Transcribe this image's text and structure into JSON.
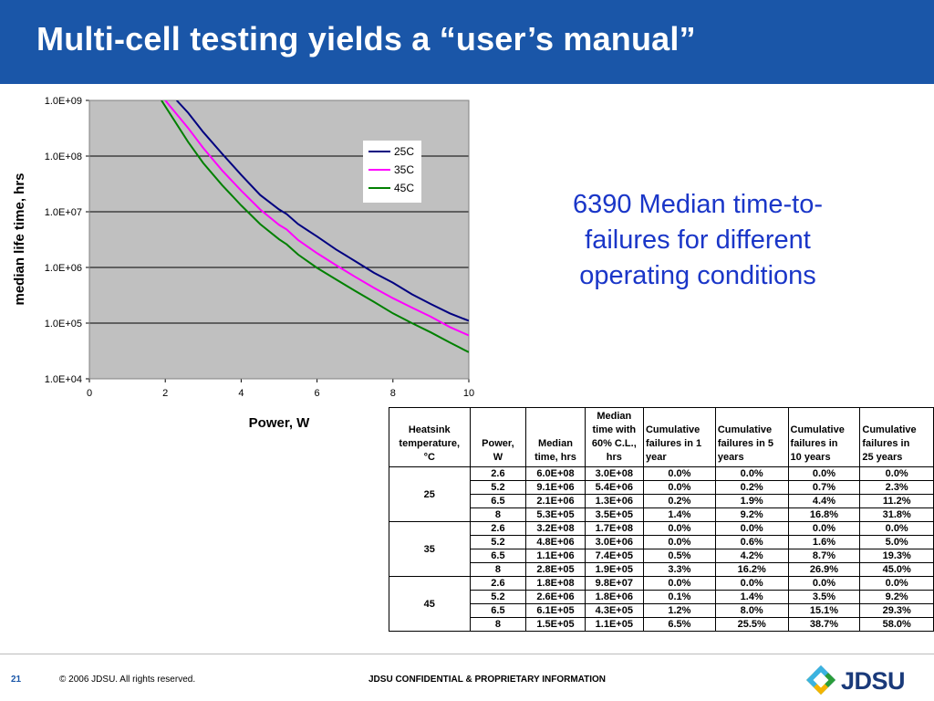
{
  "slide": {
    "title": "Multi-cell testing yields a “user’s manual”",
    "callout": "6390 Median time-to-failures for different operating conditions",
    "colors": {
      "header": "#1a56a8",
      "callout": "#1a36c8",
      "plot_bg": "#c0c0c0"
    }
  },
  "chart_data": {
    "type": "line",
    "title": "",
    "xlabel": "Power, W",
    "ylabel": "median life time, hrs",
    "xlim": [
      0,
      10
    ],
    "ylim": [
      10000,
      1000000000
    ],
    "yscale": "log",
    "xticks": [
      "0",
      "2",
      "4",
      "6",
      "8",
      "10"
    ],
    "yticks": [
      "1.0E+04",
      "1.0E+05",
      "1.0E+06",
      "1.0E+07",
      "1.0E+08",
      "1.0E+09"
    ],
    "grid": true,
    "legend": "top-right",
    "series": [
      {
        "name": "25C",
        "color": "#000080",
        "x": [
          2.3,
          2.6,
          3.0,
          3.5,
          4.0,
          4.5,
          5.0,
          5.2,
          5.5,
          6.0,
          6.5,
          7.0,
          7.5,
          8.0,
          8.5,
          9.0,
          9.5,
          10.0
        ],
        "y": [
          1000000000.0,
          600000000.0,
          270000000.0,
          110000000.0,
          46000000.0,
          20000000.0,
          11000000.0,
          9100000.0,
          6000000.0,
          3600000.0,
          2100000.0,
          1300000.0,
          800000.0,
          530000.0,
          330000.0,
          220000.0,
          150000.0,
          110000.0
        ]
      },
      {
        "name": "35C",
        "color": "#ff00ff",
        "x": [
          2.0,
          2.6,
          3.0,
          3.5,
          4.0,
          4.5,
          5.0,
          5.2,
          5.5,
          6.0,
          6.5,
          7.0,
          7.5,
          8.0,
          8.5,
          9.0,
          9.5,
          10.0
        ],
        "y": [
          1000000000.0,
          320000000.0,
          140000000.0,
          55000000.0,
          24000000.0,
          11000000.0,
          5800000.0,
          4800000.0,
          3100000.0,
          1800000.0,
          1100000.0,
          680000.0,
          430000.0,
          280000.0,
          190000.0,
          130000.0,
          85000.0,
          60000.0
        ]
      },
      {
        "name": "45C",
        "color": "#008000",
        "x": [
          1.9,
          2.6,
          3.0,
          3.5,
          4.0,
          4.5,
          5.0,
          5.2,
          5.5,
          6.0,
          6.5,
          7.0,
          7.5,
          8.0,
          8.5,
          9.0,
          9.5,
          10.0
        ],
        "y": [
          1000000000.0,
          180000000.0,
          75000000.0,
          30000000.0,
          13000000.0,
          6000000.0,
          3200000.0,
          2600000.0,
          1700000.0,
          980000.0,
          610000.0,
          380000.0,
          240000.0,
          150000.0,
          100000.0,
          68000.0,
          45000.0,
          30000.0
        ]
      }
    ]
  },
  "table": {
    "headers": [
      [
        "Heatsink",
        "temperature,",
        "°C"
      ],
      [
        "Power,",
        "W"
      ],
      [
        "Median",
        "time, hrs"
      ],
      [
        "Median",
        "time with",
        "60% C.L.,",
        "hrs"
      ],
      [
        "Cumulative",
        "failures in 1",
        "year"
      ],
      [
        "Cumulative",
        "failures in 5",
        "years"
      ],
      [
        "Cumulative",
        "failures in",
        "10 years"
      ],
      [
        "Cumulative",
        "failures in",
        "25 years"
      ]
    ],
    "groups": [
      {
        "temp": "25",
        "rows": [
          [
            "2.6",
            "6.0E+08",
            "3.0E+08",
            "0.0%",
            "0.0%",
            "0.0%",
            "0.0%"
          ],
          [
            "5.2",
            "9.1E+06",
            "5.4E+06",
            "0.0%",
            "0.2%",
            "0.7%",
            "2.3%"
          ],
          [
            "6.5",
            "2.1E+06",
            "1.3E+06",
            "0.2%",
            "1.9%",
            "4.4%",
            "11.2%"
          ],
          [
            "8",
            "5.3E+05",
            "3.5E+05",
            "1.4%",
            "9.2%",
            "16.8%",
            "31.8%"
          ]
        ]
      },
      {
        "temp": "35",
        "rows": [
          [
            "2.6",
            "3.2E+08",
            "1.7E+08",
            "0.0%",
            "0.0%",
            "0.0%",
            "0.0%"
          ],
          [
            "5.2",
            "4.8E+06",
            "3.0E+06",
            "0.0%",
            "0.6%",
            "1.6%",
            "5.0%"
          ],
          [
            "6.5",
            "1.1E+06",
            "7.4E+05",
            "0.5%",
            "4.2%",
            "8.7%",
            "19.3%"
          ],
          [
            "8",
            "2.8E+05",
            "1.9E+05",
            "3.3%",
            "16.2%",
            "26.9%",
            "45.0%"
          ]
        ]
      },
      {
        "temp": "45",
        "rows": [
          [
            "2.6",
            "1.8E+08",
            "9.8E+07",
            "0.0%",
            "0.0%",
            "0.0%",
            "0.0%"
          ],
          [
            "5.2",
            "2.6E+06",
            "1.8E+06",
            "0.1%",
            "1.4%",
            "3.5%",
            "9.2%"
          ],
          [
            "6.5",
            "6.1E+05",
            "4.3E+05",
            "1.2%",
            "8.0%",
            "15.1%",
            "29.3%"
          ],
          [
            "8",
            "1.5E+05",
            "1.1E+05",
            "6.5%",
            "25.5%",
            "38.7%",
            "58.0%"
          ]
        ]
      }
    ]
  },
  "footer": {
    "page": "21",
    "copyright": "© 2006 JDSU. All rights reserved.",
    "confidential": "JDSU CONFIDENTIAL & PROPRIETARY INFORMATION",
    "logo": "JDSU",
    "logo_icon": "jdsu-logo-icon"
  }
}
